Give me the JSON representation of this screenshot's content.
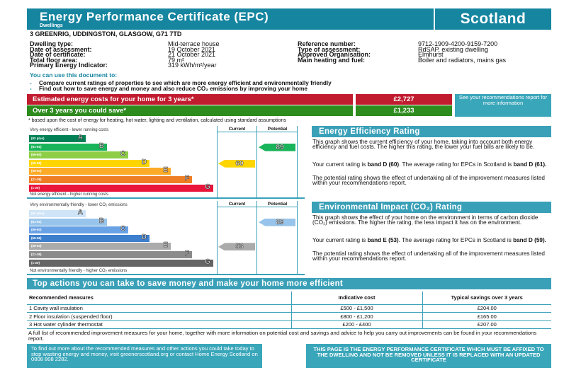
{
  "header": {
    "title": "Energy Performance Certificate (EPC)",
    "subtitle": "Dwellings",
    "region": "Scotland"
  },
  "address": "3 GREENRIG, UDDINGSTON, GLASGOW, G71 7TD",
  "info_left": [
    {
      "label": "Dwelling type:",
      "value": "Mid-terrace house"
    },
    {
      "label": "Date of assessment:",
      "value": "19 October 2021"
    },
    {
      "label": "Date of certificate:",
      "value": "21 October 2021"
    },
    {
      "label": "Total floor area:",
      "value": "79 m²"
    },
    {
      "label": "Primary Energy Indicator:",
      "value": "319 kWh/m²/year"
    }
  ],
  "info_right": [
    {
      "label": "Reference number:",
      "value": "9712-1909-4200-9159-7200"
    },
    {
      "label": "Type of assessment:",
      "value": "RdSAP, existing dwelling"
    },
    {
      "label": "Approved Organisation:",
      "value": "Elmhurst"
    },
    {
      "label": "Main heating and fuel:",
      "value": "Boiler and radiators, mains gas"
    }
  ],
  "use_heading": "You can use this document to:",
  "bullets": [
    "Compare current ratings of properties to see which are more energy efficient and environmentally friendly",
    "Find out how to save energy and money and also reduce CO₂ emissions by improving your home"
  ],
  "costs": {
    "estimated_label": "Estimated energy costs for your home for 3 years*",
    "estimated_value": "£2,727",
    "save_label": "Over 3 years you could save*",
    "save_value": "£1,233",
    "see_box": "See your recommendations report for more information",
    "footnote": "* based upon the cost of energy for heating, hot water, lighting and ventilation, calculated using standard assumptions"
  },
  "colors": {
    "teal": "#1685a0",
    "red": "#c11b2f",
    "green": "#2e8b1e"
  },
  "energy_chart": {
    "top_label": "Very energy efficient - lower running costs",
    "bottom_label": "Not energy efficient - higher running costs",
    "current_header": "Current",
    "potential_header": "Potential",
    "bands": [
      {
        "letter": "A",
        "range": "(92 plus)",
        "color": "#008054"
      },
      {
        "letter": "B",
        "range": "(81-91)",
        "color": "#19b459"
      },
      {
        "letter": "C",
        "range": "(69-80)",
        "color": "#8dce46"
      },
      {
        "letter": "D",
        "range": "(55-68)",
        "color": "#ffd500"
      },
      {
        "letter": "E",
        "range": "(39-54)",
        "color": "#fcaa27"
      },
      {
        "letter": "F",
        "range": "(21-38)",
        "color": "#ef7d23"
      },
      {
        "letter": "G",
        "range": "(1-20)",
        "color": "#e9153b"
      }
    ],
    "current": {
      "value": "60",
      "band": 3,
      "color": "#ffd500"
    },
    "potential": {
      "value": "89",
      "band": 1,
      "color": "#19b459"
    }
  },
  "env_chart": {
    "top_label": "Very environmentally friendly - lower CO₂ emissions",
    "bottom_label": "Not environmentally friendly - higher CO₂ emissions",
    "current_header": "Current",
    "potential_header": "Potential",
    "bands": [
      {
        "letter": "A",
        "range": "(92 plus)",
        "color": "#cfe4f7"
      },
      {
        "letter": "B",
        "range": "(81-91)",
        "color": "#97c4ea"
      },
      {
        "letter": "C",
        "range": "(69-80)",
        "color": "#6aa2e6"
      },
      {
        "letter": "D",
        "range": "(55-68)",
        "color": "#3d7fcc"
      },
      {
        "letter": "E",
        "range": "(39-54)",
        "color": "#ababab"
      },
      {
        "letter": "F",
        "range": "(21-38)",
        "color": "#8b8b8b"
      },
      {
        "letter": "G",
        "range": "(1-20)",
        "color": "#656565"
      }
    ],
    "current": {
      "value": "53",
      "band": 4,
      "color": "#ababab"
    },
    "potential": {
      "value": "89",
      "band": 1,
      "color": "#97c4ea"
    }
  },
  "eer": {
    "heading": "Energy Efficiency Rating",
    "p1": "This graph shows the current efficiency of your home, taking into account both energy efficiency and fuel costs. The higher this rating, the lower your fuel bills are likely to be.",
    "p2a": "Your current rating is ",
    "p2b": "band D (60)",
    "p2c": ". The average rating for EPCs in Scotland is ",
    "p2d": "band D (61).",
    "p3": "The potential rating shows the effect of undertaking all of the improvement measures listed within your recommendations report."
  },
  "eir": {
    "heading": "Environmental Impact (CO₂) Rating",
    "p1": "This graph shows the effect of your home on the environment in terms of carbon dioxide (CO₂) emissions. The higher the rating, the less impact it has on the environment.",
    "p2a": "Your current rating is ",
    "p2b": "band E (53)",
    "p2c": ". The average rating for EPCs in Scotland is ",
    "p2d": "band D (59).",
    "p3": "The potential rating shows the effect of undertaking all of the improvement measures listed within your recommendations report."
  },
  "actions": {
    "heading": "Top actions you can take to save money and make your home more efficient",
    "columns": [
      "Recommended measures",
      "Indicative cost",
      "Typical savings over 3 years"
    ],
    "rows": [
      [
        "1 Cavity wall insulation",
        "£500 - £1,500",
        "£204.00"
      ],
      [
        "2 Floor insulation (suspended floor)",
        "£800 - £1,200",
        "£165.00"
      ],
      [
        "3 Hot water cylinder thermostat",
        "£200 - £400",
        "£207.00"
      ]
    ],
    "full_list": "A full list of recommended improvement measures for your home, together with more information on potential cost and savings and advice to help you carry out improvements can be found in your recommendations report."
  },
  "footer": {
    "left": "To find out more about the recommended measures and other actions you could take today to stop wasting energy and money, visit greenerscotland.org or contact Home Energy Scotland on 0808 808 2282.",
    "right": "THIS PAGE IS THE ENERGY PERFORMANCE CERTIFICATE WHICH MUST BE AFFIXED TO THE DWELLING AND NOT BE REMOVED UNLESS IT IS REPLACED WITH AN UPDATED CERTIFICATE"
  }
}
